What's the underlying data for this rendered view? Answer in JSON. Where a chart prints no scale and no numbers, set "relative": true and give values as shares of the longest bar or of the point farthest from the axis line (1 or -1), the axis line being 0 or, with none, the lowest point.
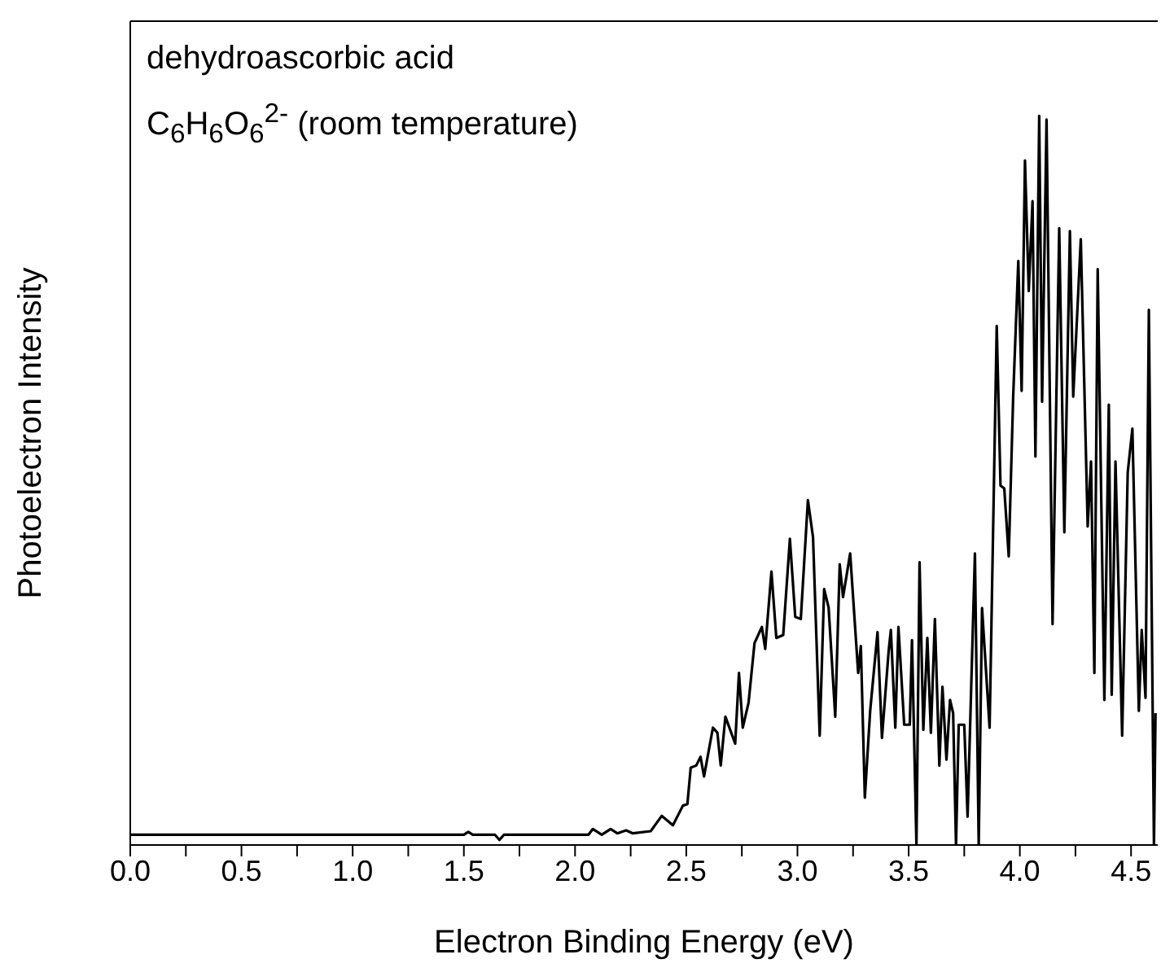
{
  "chart_data": {
    "type": "line",
    "relative": true,
    "xlabel": "Electron Binding Energy (eV)",
    "ylabel": "Photoelectron Intensity",
    "annotations": [
      "dehydroascorbic acid",
      "C$_{6}$H$_{6}$O$_{6}$$^{2-}$ (room temperature)"
    ],
    "xlim": [
      0,
      4.62
    ],
    "xticks": [
      {
        "value": 0,
        "label": "0.0"
      },
      {
        "value": 0.25,
        "label": null
      },
      {
        "value": 0.5,
        "label": "0.5"
      },
      {
        "value": 0.75,
        "label": null
      },
      {
        "value": 1,
        "label": "1.0"
      },
      {
        "value": 1.25,
        "label": null
      },
      {
        "value": 1.5,
        "label": "1.5"
      },
      {
        "value": 1.75,
        "label": null
      },
      {
        "value": 2,
        "label": "2.0"
      },
      {
        "value": 2.25,
        "label": null
      },
      {
        "value": 2.5,
        "label": "2.5"
      },
      {
        "value": 2.75,
        "label": null
      },
      {
        "value": 3,
        "label": "3.0"
      },
      {
        "value": 3.25,
        "label": null
      },
      {
        "value": 3.5,
        "label": "3.5"
      },
      {
        "value": 3.75,
        "label": null
      },
      {
        "value": 4,
        "label": "4.0"
      },
      {
        "value": 4.25,
        "label": null
      },
      {
        "value": 4.5,
        "label": "4.5"
      }
    ],
    "grid": false,
    "legend": false,
    "marker": "none",
    "line_style": "solid",
    "series": [
      {
        "color": "#000000",
        "x": [
          0,
          1.5,
          1.52,
          1.54,
          1.64,
          1.66,
          1.68,
          2.06,
          2.08,
          2.12,
          2.16,
          2.19,
          2.23,
          2.26,
          2.34,
          2.39,
          2.44,
          2.485,
          2.505,
          2.52,
          2.545,
          2.564,
          2.58,
          2.62,
          2.64,
          2.655,
          2.676,
          2.72,
          2.737,
          2.754,
          2.78,
          2.807,
          2.84,
          2.855,
          2.883,
          2.905,
          2.936,
          2.966,
          2.99,
          3.015,
          3.047,
          3.07,
          3.1,
          3.12,
          3.14,
          3.17,
          3.19,
          3.205,
          3.237,
          3.273,
          3.285,
          3.303,
          3.327,
          3.36,
          3.38,
          3.41,
          3.42,
          3.44,
          3.454,
          3.48,
          3.505,
          3.515,
          3.535,
          3.549,
          3.566,
          3.584,
          3.6,
          3.618,
          3.638,
          3.652,
          3.67,
          3.686,
          3.7,
          3.713,
          3.725,
          3.75,
          3.765,
          3.798,
          3.815,
          3.83,
          3.864,
          3.896,
          3.913,
          3.93,
          3.95,
          3.97,
          3.993,
          4.008,
          4.023,
          4.04,
          4.057,
          4.07,
          4.087,
          4.1,
          4.12,
          4.147,
          4.177,
          4.2,
          4.225,
          4.24,
          4.274,
          4.305,
          4.32,
          4.335,
          4.35,
          4.38,
          4.4,
          4.413,
          4.43,
          4.46,
          4.485,
          4.506,
          4.535,
          4.548,
          4.565,
          4.58,
          4.603,
          4.61
        ],
        "values": [
          0.014,
          0.014,
          0.018,
          0.014,
          0.014,
          0.007,
          0.014,
          0.014,
          0.022,
          0.014,
          0.022,
          0.016,
          0.02,
          0.016,
          0.019,
          0.04,
          0.027,
          0.054,
          0.056,
          0.106,
          0.109,
          0.121,
          0.094,
          0.161,
          0.154,
          0.109,
          0.176,
          0.139,
          0.236,
          0.161,
          0.195,
          0.277,
          0.299,
          0.269,
          0.375,
          0.284,
          0.288,
          0.42,
          0.313,
          0.31,
          0.473,
          0.422,
          0.15,
          0.351,
          0.326,
          0.176,
          0.385,
          0.34,
          0.4,
          0.236,
          0.273,
          0.065,
          0.184,
          0.292,
          0.147,
          0.266,
          0.295,
          0.161,
          0.299,
          0.165,
          0.165,
          0.281,
          0,
          0.388,
          0.158,
          0.284,
          0.154,
          0.31,
          0.109,
          0.217,
          0.117,
          0.199,
          0.181,
          0,
          0.165,
          0.165,
          0.039,
          0.4,
          0,
          0.325,
          0.161,
          0.712,
          0.493,
          0.489,
          0.396,
          0.615,
          0.801,
          0.623,
          0.939,
          0.76,
          0.883,
          0.533,
          1,
          0.608,
          0.995,
          0.303,
          0.846,
          0.429,
          0.842,
          0.615,
          0.831,
          0.437,
          0.526,
          0.236,
          0.79,
          0.199,
          0.604,
          0.206,
          0.526,
          0.15,
          0.511,
          0.571,
          0.184,
          0.295,
          0.202,
          0.734,
          0,
          0.181
        ]
      }
    ]
  }
}
